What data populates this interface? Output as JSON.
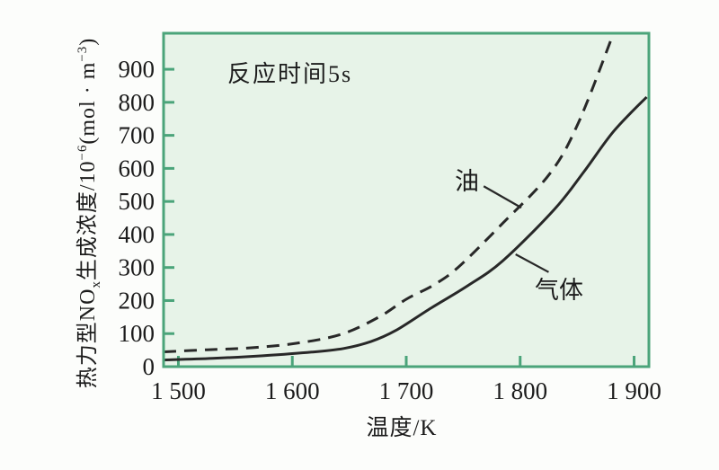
{
  "chart_data": {
    "type": "line",
    "title": "",
    "annotation": "反应时间5s",
    "xlabel": "温度/K",
    "ylabel_parts": [
      {
        "t": "热力型NO"
      },
      {
        "t": "x",
        "s": "sub"
      },
      {
        "t": "生成浓度/10",
        "s": ""
      },
      {
        "t": "−6",
        "s": "sup"
      },
      {
        "t": "(mol · m",
        "s": ""
      },
      {
        "t": "−3",
        "s": "sup"
      },
      {
        "t": ")",
        "s": ""
      }
    ],
    "xlim": [
      1487,
      1913
    ],
    "ylim": [
      0,
      1009
    ],
    "grid": false,
    "legend_position": "inline-annotations",
    "x_ticks": [
      {
        "v": 1500,
        "label": "1 500"
      },
      {
        "v": 1600,
        "label": "1 600"
      },
      {
        "v": 1700,
        "label": "1 700"
      },
      {
        "v": 1800,
        "label": "1 800"
      },
      {
        "v": 1900,
        "label": "1 900"
      }
    ],
    "y_ticks": [
      {
        "v": 0,
        "label": "0"
      },
      {
        "v": 100,
        "label": "100"
      },
      {
        "v": 200,
        "label": "200"
      },
      {
        "v": 300,
        "label": "300"
      },
      {
        "v": 400,
        "label": "400"
      },
      {
        "v": 500,
        "label": "500"
      },
      {
        "v": 600,
        "label": "600"
      },
      {
        "v": 700,
        "label": "700"
      },
      {
        "v": 800,
        "label": "800"
      },
      {
        "v": 900,
        "label": "900"
      }
    ],
    "series": [
      {
        "name": "油",
        "line": "dashed",
        "points": [
          [
            1487,
            45
          ],
          [
            1525,
            51
          ],
          [
            1564,
            57
          ],
          [
            1604,
            71
          ],
          [
            1643,
            98
          ],
          [
            1676,
            150
          ],
          [
            1700,
            204
          ],
          [
            1724,
            247
          ],
          [
            1746,
            302
          ],
          [
            1785,
            435
          ],
          [
            1826,
            584
          ],
          [
            1851,
            737
          ],
          [
            1881,
            1000
          ]
        ]
      },
      {
        "name": "气体",
        "line": "solid",
        "points": [
          [
            1487,
            20
          ],
          [
            1530,
            25
          ],
          [
            1574,
            33
          ],
          [
            1617,
            44
          ],
          [
            1645,
            55
          ],
          [
            1669,
            76
          ],
          [
            1691,
            110
          ],
          [
            1722,
            178
          ],
          [
            1754,
            245
          ],
          [
            1785,
            321
          ],
          [
            1830,
            476
          ],
          [
            1856,
            590
          ],
          [
            1882,
            712
          ],
          [
            1911,
            816
          ]
        ]
      }
    ],
    "leaders": [
      {
        "series": "油",
        "from": [
          1768,
          546
        ],
        "to": [
          1801,
          481
        ]
      },
      {
        "series": "气体",
        "from": [
          1796,
          340
        ],
        "to": [
          1825,
          286
        ]
      }
    ],
    "colors": {
      "background": "#fcfdfb",
      "plot_bg": "#e7f3e8",
      "border": "#4ba47a",
      "curve": "#282828",
      "text": "#1c1c1c"
    }
  }
}
